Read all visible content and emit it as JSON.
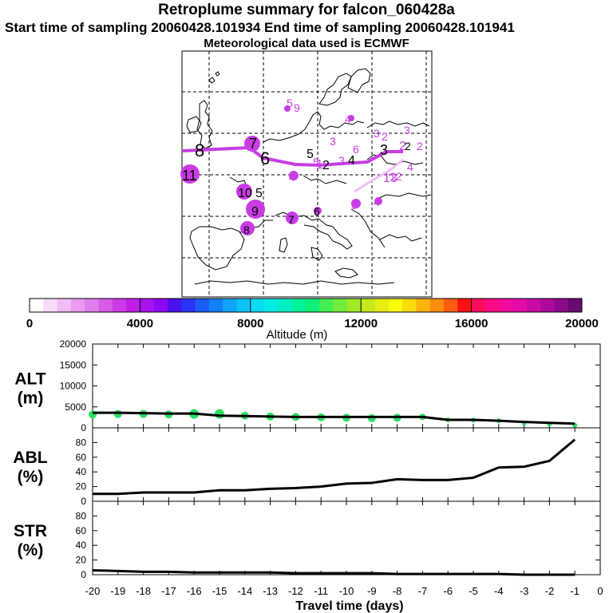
{
  "header": {
    "title": "Retroplume summary for falcon_060428a",
    "sampling_line": "Start time of sampling 20060428.101934     End time of sampling 20060428.101941",
    "met_line": "Meteorological data used is ECMWF"
  },
  "colorbar": {
    "label": "Altitude (m)",
    "ticks": [
      "0",
      "4000",
      "8000",
      "12000",
      "16000",
      "20000"
    ],
    "min": 0,
    "max": 20000,
    "colors": [
      "#ffffff",
      "#f7dcfa",
      "#f0bdf5",
      "#e99cf0",
      "#e07eec",
      "#d65ce8",
      "#cc3ae6",
      "#c01ee6",
      "#a812ec",
      "#8c0af2",
      "#4a10ee",
      "#2a34f6",
      "#1a5cfa",
      "#1480fa",
      "#10a4fa",
      "#0cc4f6",
      "#08dcf2",
      "#00eee6",
      "#00f0c4",
      "#00f29c",
      "#10f078",
      "#44ee54",
      "#74ec3a",
      "#a0ea28",
      "#c6ea1c",
      "#e6ee14",
      "#fafa0c",
      "#fcdc0c",
      "#fcb40c",
      "#fc8c0c",
      "#fc5c10",
      "#fc1014",
      "#fc0c5a",
      "#fa0a84",
      "#f20a9c",
      "#e20aa8",
      "#c80aa4",
      "#ac0a9c",
      "#8c0a8c",
      "#680a70"
    ]
  },
  "map": {
    "labels": [
      {
        "text": "8"
      },
      {
        "text": "7"
      },
      {
        "text": "6"
      },
      {
        "text": "5"
      },
      {
        "text": "4"
      },
      {
        "text": "3"
      },
      {
        "text": "2"
      },
      {
        "text": "11"
      },
      {
        "text": "10"
      },
      {
        "text": "5"
      },
      {
        "text": "9"
      },
      {
        "text": "7"
      },
      {
        "text": "6"
      },
      {
        "text": "8"
      },
      {
        "text": "5"
      },
      {
        "text": "4"
      },
      {
        "text": "13"
      },
      {
        "text": "12"
      },
      {
        "text": "4"
      },
      {
        "text": "3"
      },
      {
        "text": "2"
      },
      {
        "text": "3"
      },
      {
        "text": "2"
      },
      {
        "text": "5"
      },
      {
        "text": "9"
      },
      {
        "text": "4"
      },
      {
        "text": "3"
      },
      {
        "text": "6"
      },
      {
        "text": "1"
      },
      {
        "text": "2"
      },
      {
        "text": "5"
      },
      {
        "text": "4"
      },
      {
        "text": "3"
      },
      {
        "text": "2"
      }
    ]
  },
  "chart_data": [
    {
      "type": "scatter",
      "panel": "ALT",
      "ylabel": "ALT\n(m)",
      "ylabel_lines": [
        "ALT",
        "(m)"
      ],
      "ylim": [
        0,
        20000
      ],
      "yticks": [
        "0",
        "5000",
        "10000",
        "15000",
        "20000"
      ],
      "x": [
        -20,
        -19,
        -18,
        -17,
        -16,
        -15,
        -14,
        -13,
        -12,
        -11,
        -10,
        -9,
        -8,
        -7,
        -6,
        -5,
        -4,
        -3,
        -2,
        -1
      ],
      "mean_altitude_m": [
        3600,
        3600,
        3500,
        3400,
        3400,
        2900,
        2800,
        2700,
        2600,
        2600,
        2600,
        2600,
        2600,
        2600,
        1900,
        1900,
        1700,
        1400,
        1200,
        1000
      ],
      "particle_altitude_m": [
        3200,
        3300,
        3300,
        3200,
        3300,
        3300,
        2900,
        2700,
        2600,
        2500,
        2400,
        2300,
        2400,
        2600,
        1900,
        1800,
        1700,
        1100,
        900,
        600
      ],
      "marker_size": [
        5,
        5,
        5,
        5,
        6,
        6,
        5,
        5,
        5,
        5,
        5,
        5,
        5,
        4,
        3,
        3,
        3,
        3,
        3,
        3
      ]
    },
    {
      "type": "line",
      "panel": "ABL",
      "ylabel_lines": [
        "ABL",
        "(%)"
      ],
      "ylim": [
        0,
        100
      ],
      "yticks": [
        "0",
        "20",
        "40",
        "60",
        "80"
      ],
      "x": [
        -20,
        -19,
        -18,
        -17,
        -16,
        -15,
        -14,
        -13,
        -12,
        -11,
        -10,
        -9,
        -8,
        -7,
        -6,
        -5,
        -4,
        -3,
        -2,
        -1
      ],
      "values": [
        10,
        10,
        12,
        12,
        12,
        15,
        15,
        17,
        18,
        20,
        24,
        25,
        30,
        29,
        29,
        32,
        46,
        47,
        55,
        84
      ]
    },
    {
      "type": "line",
      "panel": "STR",
      "ylabel_lines": [
        "STR",
        "(%)"
      ],
      "ylim": [
        0,
        100
      ],
      "yticks": [
        "0",
        "20",
        "40",
        "60",
        "80"
      ],
      "x": [
        -20,
        -19,
        -18,
        -17,
        -16,
        -15,
        -14,
        -13,
        -12,
        -11,
        -10,
        -9,
        -8,
        -7,
        -6,
        -5,
        -4,
        -3,
        -2,
        -1
      ],
      "values": [
        6,
        5,
        4,
        4,
        3,
        3,
        3,
        3,
        2,
        2,
        2,
        2,
        1,
        1,
        1,
        1,
        1,
        0,
        0,
        0
      ]
    }
  ],
  "xaxis": {
    "label": "Travel time (days)",
    "ticks": [
      "-20",
      "-19",
      "-18",
      "-17",
      "-16",
      "-15",
      "-14",
      "-13",
      "-12",
      "-11",
      "-10",
      "-9",
      "-8",
      "-7",
      "-6",
      "-5",
      "-4",
      "-3",
      "-2",
      "-1",
      "0"
    ]
  }
}
